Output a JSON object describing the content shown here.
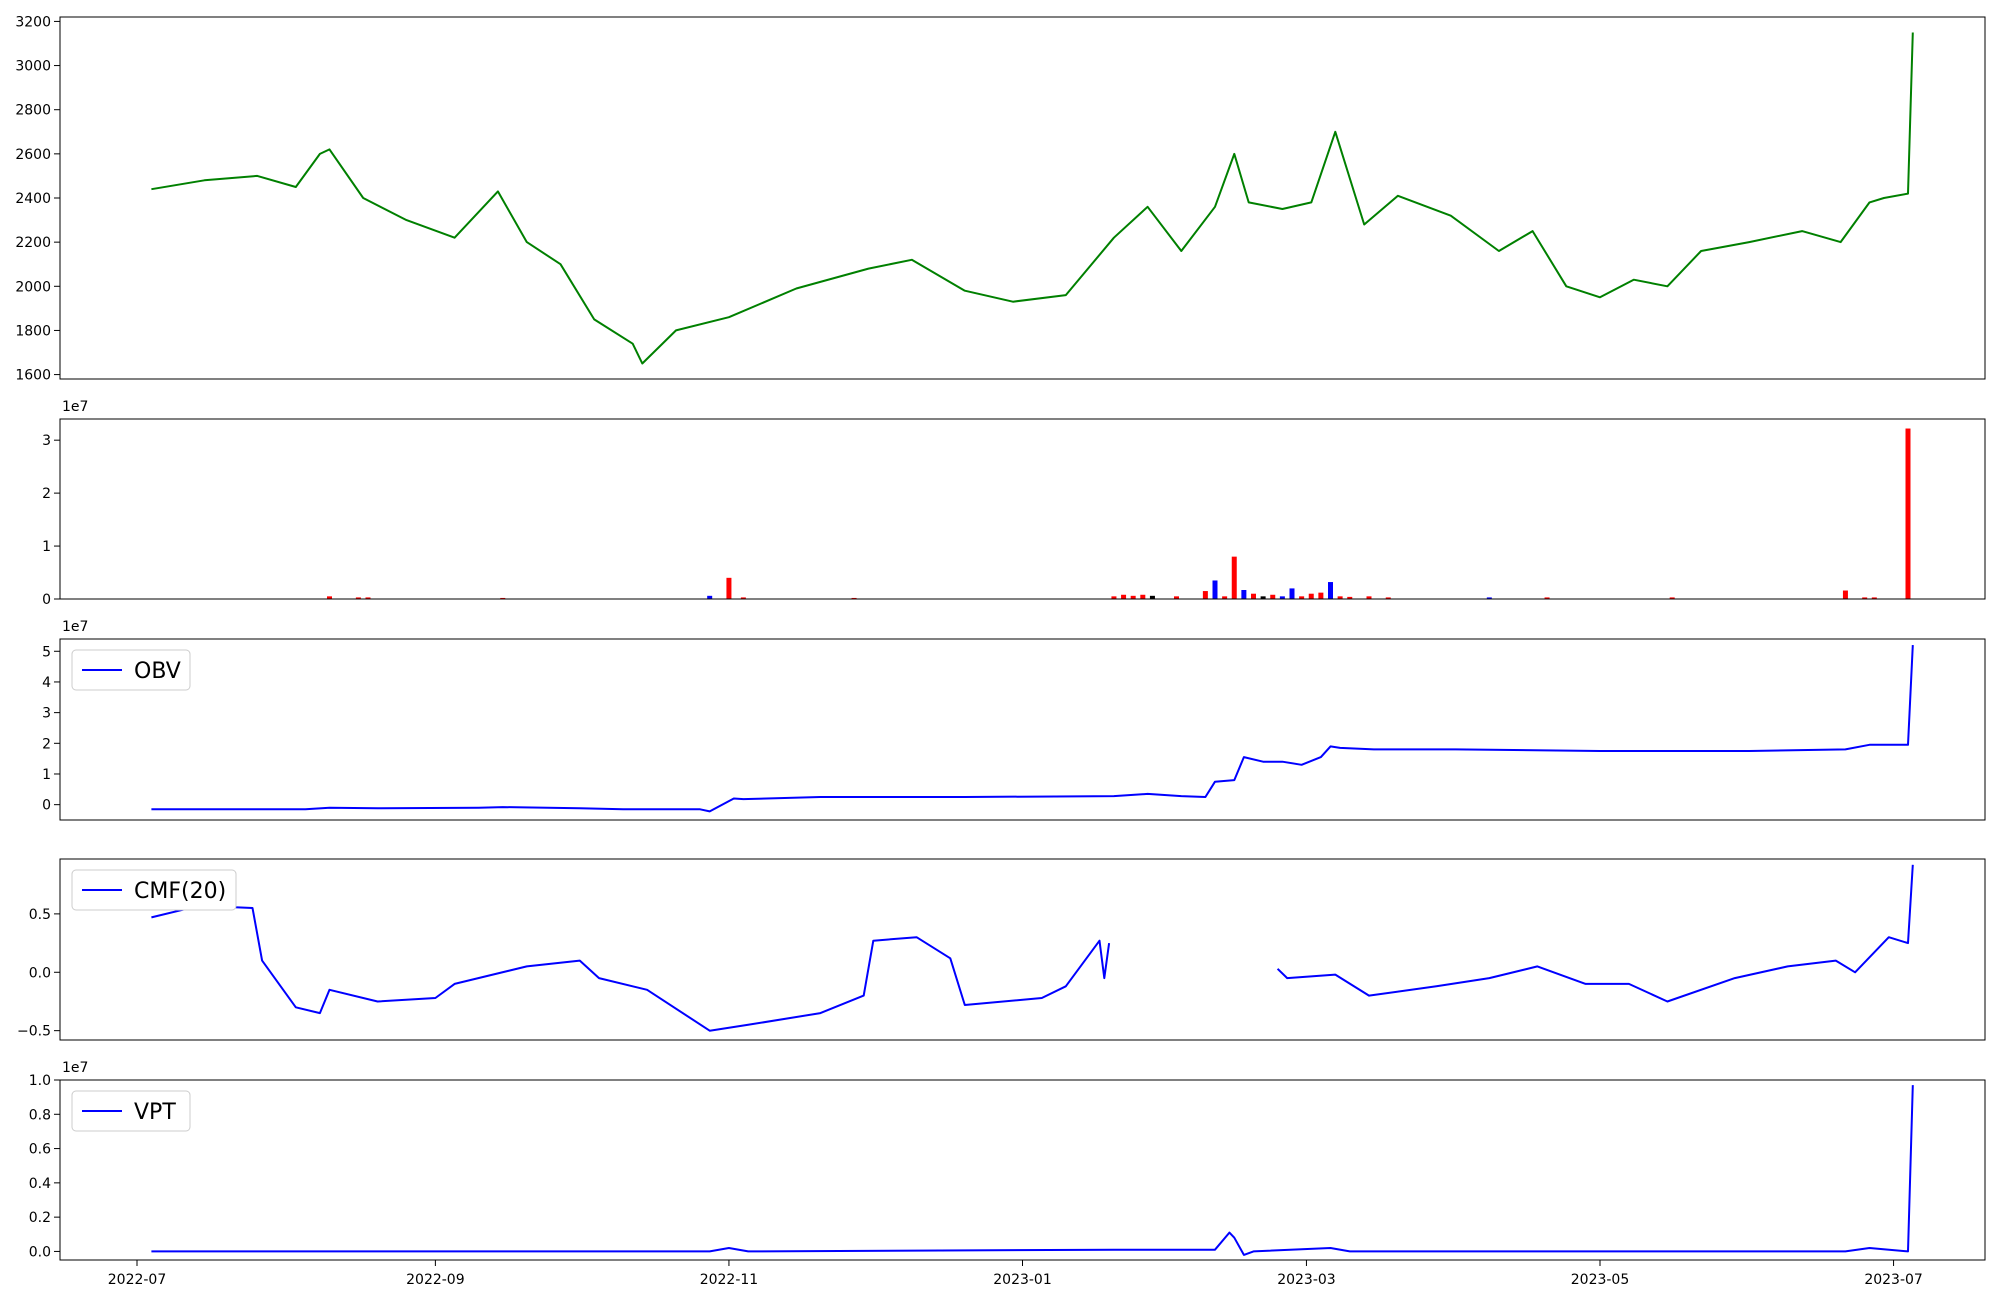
{
  "chart_data": [
    {
      "type": "line",
      "panel": "price",
      "title": "",
      "xlabel": "",
      "ylabel": "",
      "color": "#008000",
      "ylim": [
        1580,
        3220
      ],
      "yticks": [
        1600,
        1800,
        2000,
        2200,
        2400,
        2600,
        2800,
        3000,
        3200
      ],
      "ytick_labels": [
        "1600",
        "1800",
        "2000",
        "2200",
        "2400",
        "2600",
        "2800",
        "3000",
        "3200"
      ],
      "x": [
        "2022-07-04",
        "2022-07-15",
        "2022-07-26",
        "2022-08-03",
        "2022-08-08",
        "2022-08-10",
        "2022-08-17",
        "2022-08-26",
        "2022-09-05",
        "2022-09-14",
        "2022-09-20",
        "2022-09-27",
        "2022-10-04",
        "2022-10-12",
        "2022-10-14",
        "2022-10-21",
        "2022-11-01",
        "2022-11-15",
        "2022-11-30",
        "2022-12-09",
        "2022-12-20",
        "2022-12-30",
        "2023-01-10",
        "2023-01-20",
        "2023-01-27",
        "2023-02-03",
        "2023-02-10",
        "2023-02-14",
        "2023-02-17",
        "2023-02-24",
        "2023-03-02",
        "2023-03-07",
        "2023-03-13",
        "2023-03-20",
        "2023-03-31",
        "2023-04-10",
        "2023-04-17",
        "2023-04-24",
        "2023-05-01",
        "2023-05-08",
        "2023-05-15",
        "2023-05-22",
        "2023-06-01",
        "2023-06-12",
        "2023-06-20",
        "2023-06-26",
        "2023-06-29",
        "2023-07-04",
        "2023-07-05"
      ],
      "series": [
        {
          "values": [
            2440,
            2480,
            2500,
            2450,
            2600,
            2620,
            2400,
            2300,
            2220,
            2430,
            2200,
            2100,
            1850,
            1740,
            1650,
            1800,
            1860,
            1990,
            2080,
            2120,
            1980,
            1930,
            1960,
            2220,
            2360,
            2160,
            2360,
            2600,
            2380,
            2350,
            2380,
            2700,
            2280,
            2410,
            2320,
            2160,
            2250,
            2000,
            1950,
            2030,
            2000,
            2160,
            2200,
            2250,
            2200,
            2380,
            2400,
            2420,
            3150
          ]
        }
      ]
    },
    {
      "type": "bar",
      "panel": "volume",
      "title": "",
      "exponent_label": "1e7",
      "ylim": [
        0,
        3.4
      ],
      "yticks": [
        0,
        1,
        2,
        3
      ],
      "ytick_labels": [
        "0",
        "1",
        "2",
        "3"
      ],
      "colors": {
        "up": "#ff0000",
        "down": "#0000ff",
        "flat": "#000000"
      },
      "x": [
        "2022-08-10",
        "2022-08-16",
        "2022-08-18",
        "2022-09-15",
        "2022-10-28",
        "2022-11-01",
        "2022-11-04",
        "2022-11-27",
        "2023-01-20",
        "2023-01-22",
        "2023-01-24",
        "2023-01-26",
        "2023-01-28",
        "2023-02-02",
        "2023-02-08",
        "2023-02-10",
        "2023-02-12",
        "2023-02-14",
        "2023-02-16",
        "2023-02-18",
        "2023-02-20",
        "2023-02-22",
        "2023-02-24",
        "2023-02-26",
        "2023-02-28",
        "2023-03-02",
        "2023-03-04",
        "2023-03-06",
        "2023-03-08",
        "2023-03-10",
        "2023-03-14",
        "2023-03-18",
        "2023-04-08",
        "2023-04-20",
        "2023-05-16",
        "2023-06-21",
        "2023-06-25",
        "2023-06-27",
        "2023-07-04"
      ],
      "values": [
        0.05,
        0.03,
        0.03,
        0.02,
        0.06,
        0.4,
        0.03,
        0.02,
        0.05,
        0.08,
        0.06,
        0.08,
        0.06,
        0.05,
        0.15,
        0.35,
        0.05,
        0.8,
        0.17,
        0.1,
        0.05,
        0.08,
        0.05,
        0.2,
        0.05,
        0.1,
        0.12,
        0.32,
        0.05,
        0.04,
        0.05,
        0.03,
        0.03,
        0.03,
        0.03,
        0.16,
        0.03,
        0.03,
        3.22
      ],
      "bar_dirs": [
        "up",
        "up",
        "up",
        "up",
        "down",
        "up",
        "up",
        "up",
        "up",
        "up",
        "up",
        "up",
        "flat",
        "up",
        "up",
        "down",
        "up",
        "up",
        "down",
        "up",
        "flat",
        "up",
        "down",
        "down",
        "up",
        "up",
        "up",
        "down",
        "up",
        "up",
        "up",
        "up",
        "down",
        "up",
        "up",
        "up",
        "up",
        "up",
        "up"
      ]
    },
    {
      "type": "line",
      "panel": "obv",
      "exponent_label": "1e7",
      "ylim": [
        -0.5,
        5.4
      ],
      "yticks": [
        0,
        1,
        2,
        3,
        4,
        5
      ],
      "ytick_labels": [
        "0",
        "1",
        "2",
        "3",
        "4",
        "5"
      ],
      "color": "#0000ff",
      "legend": "upper left",
      "x": [
        "2022-07-04",
        "2022-08-05",
        "2022-08-10",
        "2022-08-20",
        "2022-09-10",
        "2022-09-15",
        "2022-10-01",
        "2022-10-10",
        "2022-10-26",
        "2022-10-28",
        "2022-11-02",
        "2022-11-04",
        "2022-11-20",
        "2022-12-20",
        "2023-01-20",
        "2023-01-27",
        "2023-02-03",
        "2023-02-08",
        "2023-02-10",
        "2023-02-14",
        "2023-02-16",
        "2023-02-20",
        "2023-02-24",
        "2023-02-28",
        "2023-03-04",
        "2023-03-06",
        "2023-03-08",
        "2023-03-15",
        "2023-04-01",
        "2023-05-01",
        "2023-06-01",
        "2023-06-21",
        "2023-06-26",
        "2023-07-04",
        "2023-07-05"
      ],
      "series": [
        {
          "name": "OBV",
          "values": [
            -0.15,
            -0.15,
            -0.1,
            -0.12,
            -0.1,
            -0.08,
            -0.12,
            -0.15,
            -0.15,
            -0.22,
            0.2,
            0.18,
            0.25,
            0.25,
            0.28,
            0.35,
            0.28,
            0.25,
            0.75,
            0.8,
            1.55,
            1.4,
            1.4,
            1.3,
            1.55,
            1.9,
            1.85,
            1.8,
            1.8,
            1.75,
            1.75,
            1.8,
            1.95,
            1.95,
            5.2
          ]
        }
      ]
    },
    {
      "type": "line",
      "panel": "cmf",
      "ylim": [
        -0.58,
        0.97
      ],
      "yticks": [
        -0.5,
        0,
        0.5
      ],
      "ytick_labels": [
        "−0.5",
        "0.0",
        "0.5"
      ],
      "color": "#0000ff",
      "legend": "upper left",
      "x": [
        "2022-07-04",
        "2022-07-14",
        "2022-07-25",
        "2022-07-27",
        "2022-08-03",
        "2022-08-08",
        "2022-08-10",
        "2022-08-20",
        "2022-09-01",
        "2022-09-05",
        "2022-09-20",
        "2022-10-01",
        "2022-10-05",
        "2022-10-15",
        "2022-10-28",
        "2022-11-05",
        "2022-11-20",
        "2022-11-29",
        "2022-12-01",
        "2022-12-10",
        "2022-12-17",
        "2022-12-20",
        "2023-01-05",
        "2023-01-10",
        "2023-01-17",
        "2023-01-18",
        "2023-01-19",
        "2023-01-20",
        "2023-02-23",
        "2023-02-25",
        "2023-03-07",
        "2023-03-14",
        "2023-03-28",
        "2023-04-08",
        "2023-04-18",
        "2023-04-28",
        "2023-05-07",
        "2023-05-15",
        "2023-05-29",
        "2023-06-09",
        "2023-06-19",
        "2023-06-23",
        "2023-06-30",
        "2023-07-04",
        "2023-07-05"
      ],
      "series": [
        {
          "name": "CMF(20)",
          "values": [
            0.47,
            0.57,
            0.55,
            0.1,
            -0.3,
            -0.35,
            -0.15,
            -0.25,
            -0.22,
            -0.1,
            0.05,
            0.1,
            -0.05,
            -0.15,
            -0.5,
            -0.45,
            -0.35,
            -0.2,
            0.27,
            0.3,
            0.12,
            -0.28,
            -0.22,
            -0.12,
            0.27,
            -0.05,
            0.25,
            null,
            0.03,
            -0.05,
            -0.02,
            -0.2,
            -0.12,
            -0.05,
            0.05,
            -0.1,
            -0.1,
            -0.25,
            -0.05,
            0.05,
            0.1,
            0.0,
            0.3,
            0.25,
            0.92
          ]
        }
      ]
    },
    {
      "type": "line",
      "panel": "vpt",
      "exponent_label": "1e7",
      "ylim": [
        -0.05,
        1.0
      ],
      "yticks": [
        0,
        0.2,
        0.4,
        0.6,
        0.8,
        1.0
      ],
      "ytick_labels": [
        "0.0",
        "0.2",
        "0.4",
        "0.6",
        "0.8",
        "1.0"
      ],
      "xticks": [
        "2022-07-01",
        "2022-09-01",
        "2022-11-01",
        "2023-01-01",
        "2023-03-01",
        "2023-05-01",
        "2023-07-01"
      ],
      "xtick_labels": [
        "2022-07",
        "2022-09",
        "2022-11",
        "2023-01",
        "2023-03",
        "2023-05",
        "2023-07"
      ],
      "color": "#0000ff",
      "legend": "upper left",
      "x": [
        "2022-07-04",
        "2022-10-28",
        "2022-11-01",
        "2022-11-05",
        "2023-01-20",
        "2023-02-10",
        "2023-02-13",
        "2023-02-14",
        "2023-02-16",
        "2023-02-18",
        "2023-03-06",
        "2023-03-10",
        "2023-06-21",
        "2023-06-26",
        "2023-07-04",
        "2023-07-05"
      ],
      "series": [
        {
          "name": "VPT",
          "values": [
            0.0,
            0.0,
            0.02,
            0.0,
            0.01,
            0.01,
            0.11,
            0.08,
            -0.02,
            0.0,
            0.02,
            0.0,
            0.0,
            0.02,
            0.0,
            0.97
          ]
        }
      ]
    }
  ]
}
